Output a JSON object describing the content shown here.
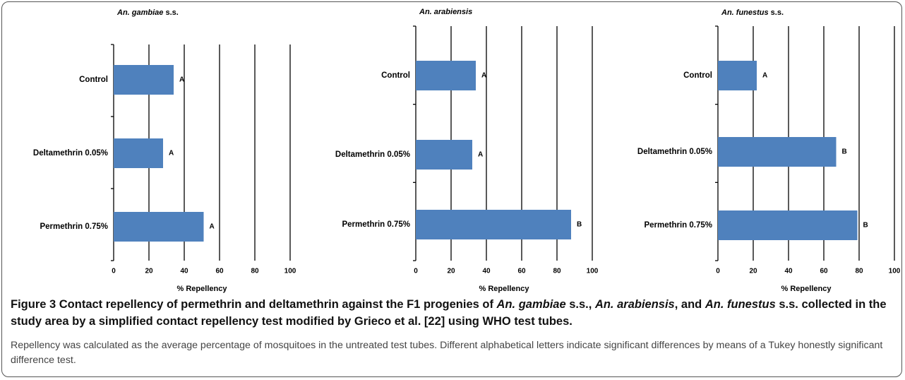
{
  "chart_data": [
    {
      "type": "bar",
      "title": [
        {
          "text": "An. gambiae",
          "italic": true
        },
        {
          "text": " s.s.",
          "italic": false
        }
      ],
      "categories": [
        "Control",
        "Deltamethrin 0.05%",
        "Permethrin 0.75%"
      ],
      "values": [
        34,
        28,
        51
      ],
      "letters": [
        "A",
        "A",
        "A"
      ],
      "color": "#4f81bd",
      "xlim": [
        0,
        100
      ],
      "xticks": [
        0,
        20,
        40,
        60,
        80,
        100
      ],
      "xlabel": "% Repellency",
      "grid": true
    },
    {
      "type": "bar",
      "title": [
        {
          "text": "An. arabiensis",
          "italic": true
        }
      ],
      "categories": [
        "Control",
        "Deltamethrin 0.05%",
        "Permethrin 0.75%"
      ],
      "values": [
        34,
        32,
        88
      ],
      "letters": [
        "A",
        "A",
        "B"
      ],
      "color": "#4f81bd",
      "xlim": [
        0,
        100
      ],
      "xticks": [
        0,
        20,
        40,
        60,
        80,
        100
      ],
      "xlabel": "% Repellency",
      "grid": true
    },
    {
      "type": "bar",
      "title": [
        {
          "text": "An. funestus",
          "italic": true
        },
        {
          "text": " s.s.",
          "italic": false
        }
      ],
      "categories": [
        "Control",
        "Deltamethrin 0.05%",
        "Permethrin 0.75%"
      ],
      "values": [
        22,
        67,
        79
      ],
      "letters": [
        "A",
        "B",
        "B"
      ],
      "color": "#4f81bd",
      "xlim": [
        0,
        100
      ],
      "xticks": [
        0,
        20,
        40,
        60,
        80,
        100
      ],
      "xlabel": "% Repellency",
      "grid": true
    }
  ],
  "caption": {
    "title": [
      {
        "text": "Figure 3 Contact repellency of permethrin and deltamethrin against the F1 progenies of ",
        "italic": false
      },
      {
        "text": "An. gambiae",
        "italic": true
      },
      {
        "text": " s.s., ",
        "italic": false
      },
      {
        "text": "An. arabiensis",
        "italic": true
      },
      {
        "text": ", and ",
        "italic": false
      },
      {
        "text": "An. funestus",
        "italic": true
      },
      {
        "text": " s.s. collected in the study area by a simplified contact repellency test modified by Grieco et al. [22] using WHO test tubes.",
        "italic": false
      }
    ],
    "text": "Repellency was calculated as the average percentage of mosquitoes in the untreated test tubes. Different alphabetical letters indicate significant differences by means of a Tukey honestly significant difference test."
  }
}
